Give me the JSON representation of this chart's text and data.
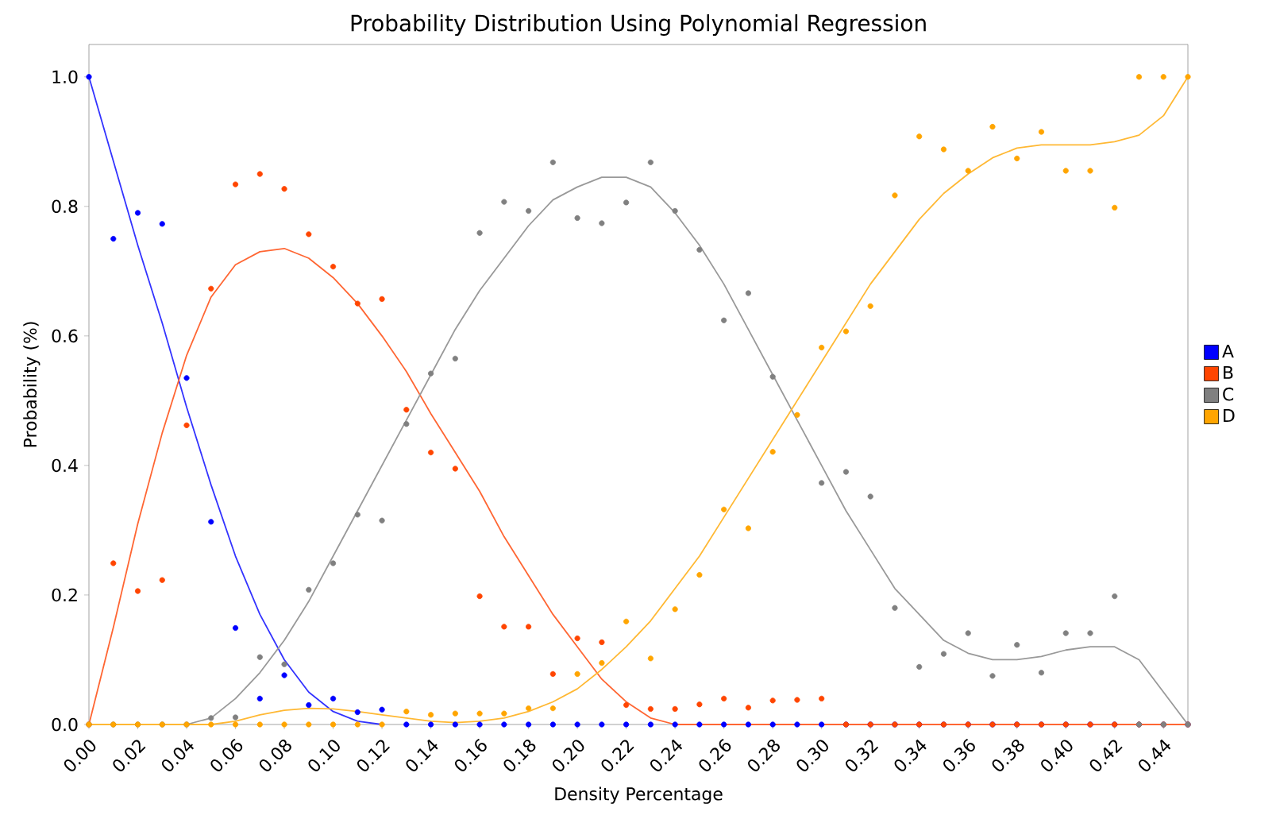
{
  "chart_data": {
    "type": "scatter",
    "title": "Probability Distribution Using Polynomial Regression",
    "xlabel": "Density Percentage",
    "ylabel": "Probability (%)",
    "x": [
      0,
      0.01,
      0.02,
      0.03,
      0.04,
      0.05,
      0.06,
      0.07,
      0.08,
      0.09,
      0.1,
      0.11,
      0.12,
      0.13,
      0.14,
      0.15,
      0.16,
      0.17,
      0.18,
      0.19,
      0.2,
      0.21,
      0.22,
      0.23,
      0.24,
      0.25,
      0.26,
      0.27,
      0.28,
      0.29,
      0.3,
      0.31,
      0.32,
      0.33,
      0.34,
      0.35,
      0.36,
      0.37,
      0.38,
      0.39,
      0.4,
      0.41,
      0.42,
      0.43,
      0.44,
      0.45
    ],
    "xlim": [
      0,
      0.45
    ],
    "ylim": [
      0,
      1.05
    ],
    "xticks": [
      {
        "value": 0,
        "label": "0.00"
      },
      {
        "value": 0.02,
        "label": "0.02"
      },
      {
        "value": 0.04,
        "label": "0.04"
      },
      {
        "value": 0.06,
        "label": "0.06"
      },
      {
        "value": 0.08,
        "label": "0.08"
      },
      {
        "value": 0.1,
        "label": "0.10"
      },
      {
        "value": 0.12,
        "label": "0.12"
      },
      {
        "value": 0.14,
        "label": "0.14"
      },
      {
        "value": 0.16,
        "label": "0.16"
      },
      {
        "value": 0.18,
        "label": "0.18"
      },
      {
        "value": 0.2,
        "label": "0.20"
      },
      {
        "value": 0.22,
        "label": "0.22"
      },
      {
        "value": 0.24,
        "label": "0.24"
      },
      {
        "value": 0.26,
        "label": "0.26"
      },
      {
        "value": 0.28,
        "label": "0.28"
      },
      {
        "value": 0.3,
        "label": "0.30"
      },
      {
        "value": 0.32,
        "label": "0.32"
      },
      {
        "value": 0.34,
        "label": "0.34"
      },
      {
        "value": 0.36,
        "label": "0.36"
      },
      {
        "value": 0.38,
        "label": "0.38"
      },
      {
        "value": 0.4,
        "label": "0.40"
      },
      {
        "value": 0.42,
        "label": "0.42"
      },
      {
        "value": 0.44,
        "label": "0.44"
      }
    ],
    "yticks": [
      {
        "value": 0,
        "label": "0.0"
      },
      {
        "value": 0.2,
        "label": "0.2"
      },
      {
        "value": 0.4,
        "label": "0.4"
      },
      {
        "value": 0.6,
        "label": "0.6"
      },
      {
        "value": 0.8,
        "label": "0.8"
      },
      {
        "value": 1,
        "label": "1.0"
      }
    ],
    "legend": "right",
    "series": [
      {
        "name": "A",
        "marker": "circle",
        "color": "#0000ff",
        "values": [
          1.0,
          0.75,
          0.79,
          0.773,
          0.535,
          0.313,
          0.149,
          0.04,
          0.076,
          0.03,
          0.04,
          0.019,
          0.023,
          0,
          0,
          0,
          0,
          0,
          0,
          0,
          0,
          0,
          0,
          0,
          0,
          0,
          0,
          0,
          0,
          0,
          0,
          0,
          0,
          0,
          0,
          0,
          0,
          0,
          0,
          0,
          0,
          0,
          0,
          0,
          0,
          0
        ]
      },
      {
        "name": "B",
        "marker": "circle",
        "color": "#ff4500",
        "values": [
          0,
          0.249,
          0.206,
          0.223,
          0.462,
          0.673,
          0.834,
          0.85,
          0.827,
          0.757,
          0.707,
          0.65,
          0.657,
          0.486,
          0.42,
          0.395,
          0.198,
          0.151,
          0.151,
          0.078,
          0.133,
          0.127,
          0.03,
          0.024,
          0.024,
          0.031,
          0.04,
          0.026,
          0.037,
          0.038,
          0.04,
          0,
          0,
          0,
          0,
          0,
          0,
          0,
          0,
          0,
          0,
          0,
          0,
          0,
          0,
          0
        ]
      },
      {
        "name": "C",
        "marker": "circle",
        "color": "#808080",
        "values": [
          0,
          0,
          0,
          0,
          0,
          0.01,
          0.011,
          0.104,
          0.093,
          0.208,
          0.249,
          0.324,
          0.315,
          0.464,
          0.542,
          0.565,
          0.759,
          0.807,
          0.793,
          0.868,
          0.782,
          0.774,
          0.806,
          0.868,
          0.793,
          0.733,
          0.624,
          0.666,
          0.537,
          null,
          0.373,
          0.39,
          0.352,
          0.18,
          0.089,
          0.109,
          0.141,
          0.075,
          0.123,
          0.08,
          0.141,
          0.141,
          0.198,
          0,
          0,
          0
        ]
      },
      {
        "name": "D",
        "marker": "circle",
        "color": "#ffa500",
        "values": [
          0,
          0,
          0,
          0,
          0,
          0,
          0,
          0,
          0,
          0,
          0,
          0,
          0,
          0.02,
          0.015,
          0.017,
          0.017,
          0.017,
          0.025,
          0.025,
          0.078,
          0.095,
          0.159,
          0.102,
          0.178,
          0.231,
          0.332,
          0.303,
          0.421,
          0.478,
          0.582,
          0.607,
          0.646,
          0.817,
          0.908,
          0.888,
          0.855,
          0.923,
          0.874,
          0.915,
          0.855,
          0.855,
          0.798,
          1.0,
          1.0,
          1.0
        ]
      },
      {
        "type": "line",
        "marker": "none",
        "line_style": "solid",
        "color": "#3333ff",
        "values": [
          1.0,
          0.87,
          0.74,
          0.62,
          0.49,
          0.37,
          0.26,
          0.17,
          0.1,
          0.05,
          0.02,
          0.005,
          0,
          null,
          null,
          null,
          null,
          null,
          null,
          null,
          null,
          null,
          null,
          null,
          null,
          null,
          null,
          null,
          null,
          null,
          null,
          null,
          null,
          null,
          null,
          null,
          null,
          null,
          null,
          null,
          null,
          null,
          null,
          null,
          null,
          null
        ]
      },
      {
        "type": "line",
        "marker": "none",
        "line_style": "solid",
        "color": "#ff6633",
        "values": [
          0,
          0.15,
          0.31,
          0.45,
          0.57,
          0.66,
          0.71,
          0.73,
          0.735,
          0.72,
          0.69,
          0.65,
          0.6,
          0.545,
          0.48,
          0.42,
          0.36,
          0.29,
          0.23,
          0.17,
          0.12,
          0.07,
          0.035,
          0.01,
          0,
          0,
          0,
          0,
          0,
          0,
          0,
          0,
          0,
          0,
          0,
          0,
          0,
          0,
          0,
          0,
          0,
          0,
          0,
          0,
          0,
          0
        ]
      },
      {
        "type": "line",
        "marker": "none",
        "line_style": "solid",
        "color": "#999999",
        "values": [
          0,
          0,
          0,
          0,
          0,
          0.01,
          0.04,
          0.08,
          0.13,
          0.19,
          0.26,
          0.33,
          0.4,
          0.47,
          0.54,
          0.61,
          0.67,
          0.72,
          0.77,
          0.81,
          0.83,
          0.845,
          0.845,
          0.83,
          0.79,
          0.74,
          0.68,
          0.61,
          0.54,
          0.47,
          0.4,
          0.33,
          0.27,
          0.21,
          0.17,
          0.13,
          0.11,
          0.1,
          0.1,
          0.105,
          0.115,
          0.12,
          0.12,
          0.1,
          0.05,
          0
        ]
      },
      {
        "type": "line",
        "marker": "none",
        "line_style": "solid",
        "color": "#ffb833",
        "values": [
          0,
          0,
          0,
          0,
          0,
          0,
          0.005,
          0.015,
          0.022,
          0.025,
          0.024,
          0.02,
          0.015,
          0.01,
          0.005,
          0.003,
          0.005,
          0.01,
          0.02,
          0.035,
          0.055,
          0.085,
          0.12,
          0.16,
          0.21,
          0.26,
          0.32,
          0.38,
          0.44,
          0.5,
          0.56,
          0.62,
          0.68,
          0.73,
          0.78,
          0.82,
          0.85,
          0.875,
          0.89,
          0.895,
          0.895,
          0.895,
          0.9,
          0.91,
          0.94,
          1.0
        ]
      }
    ]
  }
}
